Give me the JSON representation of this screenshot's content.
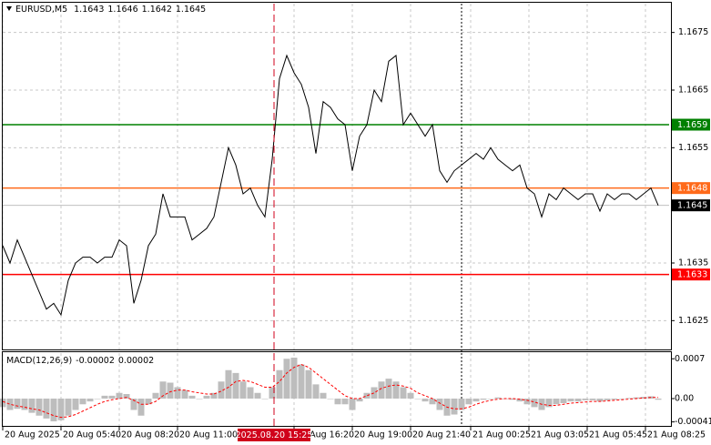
{
  "chart_data": {
    "type": "line",
    "title": "EURUSD,M5",
    "ohlc": [
      1.1643,
      1.1646,
      1.1642,
      1.1645
    ],
    "x": [
      "2025-08-20 03:00",
      "2025-08-20 03:20",
      "2025-08-20 03:40",
      "2025-08-20 04:00",
      "2025-08-20 04:20",
      "2025-08-20 04:40",
      "2025-08-20 05:00",
      "2025-08-20 05:20",
      "2025-08-20 05:40",
      "2025-08-20 06:00",
      "2025-08-20 06:20",
      "2025-08-20 06:40",
      "2025-08-20 07:00",
      "2025-08-20 07:20",
      "2025-08-20 07:40",
      "2025-08-20 08:00",
      "2025-08-20 08:20",
      "2025-08-20 08:40",
      "2025-08-20 09:00",
      "2025-08-20 09:20",
      "2025-08-20 09:40",
      "2025-08-20 10:00",
      "2025-08-20 10:20",
      "2025-08-20 10:40",
      "2025-08-20 11:00",
      "2025-08-20 11:20",
      "2025-08-20 11:40",
      "2025-08-20 12:00",
      "2025-08-20 12:20",
      "2025-08-20 12:40",
      "2025-08-20 13:00",
      "2025-08-20 13:20",
      "2025-08-20 13:40",
      "2025-08-20 14:00",
      "2025-08-20 14:20",
      "2025-08-20 14:40",
      "2025-08-20 15:00",
      "2025-08-20 15:20",
      "2025-08-20 15:40",
      "2025-08-20 16:00",
      "2025-08-20 16:20",
      "2025-08-20 16:40",
      "2025-08-20 17:00",
      "2025-08-20 17:20",
      "2025-08-20 17:40",
      "2025-08-20 18:00",
      "2025-08-20 18:20",
      "2025-08-20 18:40",
      "2025-08-20 19:00",
      "2025-08-20 19:20",
      "2025-08-20 19:40",
      "2025-08-20 20:00",
      "2025-08-20 20:20",
      "2025-08-20 20:40",
      "2025-08-20 21:00",
      "2025-08-20 21:20",
      "2025-08-20 21:40",
      "2025-08-20 22:00",
      "2025-08-20 22:20",
      "2025-08-20 22:40",
      "2025-08-20 23:00",
      "2025-08-20 23:20",
      "2025-08-20 23:40",
      "2025-08-21 00:00",
      "2025-08-21 00:20",
      "2025-08-21 00:40",
      "2025-08-21 01:00",
      "2025-08-21 01:20",
      "2025-08-21 01:40",
      "2025-08-21 02:00",
      "2025-08-21 02:20",
      "2025-08-21 02:40",
      "2025-08-21 03:00",
      "2025-08-21 03:20",
      "2025-08-21 03:40",
      "2025-08-21 04:00",
      "2025-08-21 04:20",
      "2025-08-21 04:40",
      "2025-08-21 05:00",
      "2025-08-21 05:20",
      "2025-08-21 05:40",
      "2025-08-21 06:00",
      "2025-08-21 06:20",
      "2025-08-21 06:40",
      "2025-08-21 07:00",
      "2025-08-21 07:20",
      "2025-08-21 07:40",
      "2025-08-21 08:00",
      "2025-08-21 08:20",
      "2025-08-21 08:40",
      "2025-08-21 09:00"
    ],
    "xlim": [
      "2025-08-20 03:00",
      "2025-08-21 09:30"
    ],
    "xticks": [
      {
        "value": "2025-08-20 03:00",
        "label": "20 Aug 2025"
      },
      {
        "value": "2025-08-20 05:40",
        "label": "20 Aug 05:40"
      },
      {
        "value": "2025-08-20 08:20",
        "label": "20 Aug 08:20"
      },
      {
        "value": "2025-08-20 11:00",
        "label": "20 Aug 11:00"
      },
      {
        "value": "2025-08-20 16:20",
        "label": "20 Aug 16:20"
      },
      {
        "value": "2025-08-20 19:00",
        "label": "20 Aug 19:00"
      },
      {
        "value": "2025-08-20 21:40",
        "label": "20 Aug 21:40"
      },
      {
        "value": "2025-08-21 00:25",
        "label": "21 Aug 00:25"
      },
      {
        "value": "2025-08-21 03:05",
        "label": "21 Aug 03:05"
      },
      {
        "value": "2025-08-21 05:45",
        "label": "21 Aug 05:45"
      },
      {
        "value": "2025-08-21 08:25",
        "label": "21 Aug 08:25"
      }
    ],
    "ylim": [
      1.162,
      1.168
    ],
    "yticks": [
      1.1625,
      1.1635,
      1.1655,
      1.1665,
      1.1675
    ],
    "grid": true,
    "series": [
      {
        "color": "#000000",
        "values": [
          1.1638,
          1.1635,
          1.1639,
          1.1636,
          1.1633,
          1.163,
          1.1627,
          1.1628,
          1.1626,
          1.1632,
          1.1635,
          1.1636,
          1.1636,
          1.1635,
          1.1636,
          1.1636,
          1.1639,
          1.1638,
          1.1628,
          1.1632,
          1.1638,
          1.164,
          1.1647,
          1.1643,
          1.1643,
          1.1643,
          1.1639,
          1.164,
          1.1641,
          1.1643,
          1.1649,
          1.1655,
          1.1652,
          1.1647,
          1.1648,
          1.1645,
          1.1643,
          1.1653,
          1.1667,
          1.1671,
          1.1668,
          1.1666,
          1.1662,
          1.1654,
          1.1663,
          1.1662,
          1.166,
          1.1659,
          1.1651,
          1.1657,
          1.1659,
          1.1665,
          1.1663,
          1.167,
          1.1671,
          1.1659,
          1.1661,
          1.1659,
          1.1657,
          1.1659,
          1.1651,
          1.1649,
          1.1651,
          1.1652,
          1.1653,
          1.1654,
          1.1653,
          1.1655,
          1.1653,
          1.1652,
          1.1651,
          1.1652,
          1.1648,
          1.1647,
          1.1643,
          1.1647,
          1.1646,
          1.1648,
          1.1647,
          1.1646,
          1.1647,
          1.1647,
          1.1644,
          1.1647,
          1.1646,
          1.1647,
          1.1647,
          1.1646,
          1.1647,
          1.1648,
          1.1645
        ]
      }
    ],
    "levels": [
      {
        "value": 1.1659,
        "color": "#008000",
        "box": "#008000"
      },
      {
        "value": 1.1648,
        "color": "#ff6a1a",
        "box": "#ff6a1a"
      },
      {
        "value": 1.1645,
        "color": "#c0c0c0",
        "box": "#000000"
      },
      {
        "value": 1.1633,
        "color": "#ff0000",
        "box": "#ff0000"
      }
    ],
    "crosshair": {
      "x": "2025-08-20 15:25",
      "label": "2025.08.20 15:25",
      "color": "#d0021b"
    },
    "day_separators": [
      "2025-08-21 00:00"
    ],
    "indicator": {
      "type": "macd",
      "name": "MACD(12,26,9)",
      "ylim": [
        -0.00048,
        0.0008
      ],
      "yticks": [
        -0.00041,
        {
          "value": 0,
          "label": "0.00"
        },
        0.0007
      ],
      "series": [
        {
          "type": "bar",
          "color": "#bdbdbd",
          "values": [
            -0.00015,
            -0.0002,
            -0.00018,
            -0.0002,
            -0.00025,
            -0.0003,
            -0.00035,
            -0.0004,
            -0.00038,
            -0.0003,
            -0.0002,
            -0.0001,
            -5e-05,
            0,
            5e-05,
            5e-05,
            0.0001,
            8e-05,
            -0.0002,
            -0.0003,
            -0.0001,
            0.0001,
            0.0003,
            0.00028,
            0.0002,
            0.00015,
            5e-05,
            0,
            5e-05,
            0.0001,
            0.0003,
            0.0005,
            0.00045,
            0.0003,
            0.0002,
            0.0001,
            0,
            0.0002,
            0.0005,
            0.0007,
            0.00072,
            0.0006,
            0.0005,
            0.00025,
            0.0001,
            0,
            -0.0001,
            -0.0001,
            -0.0002,
            -5e-05,
            0.0001,
            0.0002,
            0.0003,
            0.00035,
            0.0003,
            0.0002,
            0.0001,
            0,
            -5e-05,
            -0.0001,
            -0.0002,
            -0.0003,
            -0.00028,
            -0.0002,
            -0.0001,
            -5e-05,
            -2e-05,
            0,
            2e-05,
            0,
            -2e-05,
            -5e-05,
            -0.0001,
            -0.00015,
            -0.0002,
            -0.00015,
            -0.0001,
            -8e-05,
            -5e-05,
            -5e-05,
            -3e-05,
            -3e-05,
            -5e-05,
            -3e-05,
            -2e-05,
            0,
            1e-05,
            2e-05,
            3e-05,
            4e-05,
            -2e-05
          ]
        },
        {
          "type": "line",
          "color": "#ff0000",
          "values": [
            -5e-05,
            -0.0001,
            -0.00013,
            -0.00015,
            -0.00018,
            -0.0002,
            -0.00025,
            -0.0003,
            -0.00033,
            -0.00032,
            -0.00028,
            -0.00022,
            -0.00016,
            -0.0001,
            -5e-05,
            -2e-05,
            0,
            2e-05,
            -3e-05,
            -0.0001,
            -0.0001,
            -5e-05,
            5e-05,
            0.00012,
            0.00015,
            0.00015,
            0.00012,
            0.0001,
            8e-05,
            8e-05,
            0.00013,
            0.0002,
            0.0003,
            0.00032,
            0.0003,
            0.00025,
            0.0002,
            0.0002,
            0.0003,
            0.00045,
            0.00055,
            0.0006,
            0.00055,
            0.00045,
            0.00035,
            0.00025,
            0.00015,
            5e-05,
            0,
            0,
            5e-05,
            0.0001,
            0.00018,
            0.00022,
            0.00024,
            0.00022,
            0.00018,
            0.0001,
            5e-05,
            0,
            -8e-05,
            -0.00015,
            -0.00018,
            -0.00018,
            -0.00015,
            -0.0001,
            -6e-05,
            -3e-05,
            -1e-05,
            0,
            0,
            -1e-05,
            -3e-05,
            -6e-05,
            -0.0001,
            -0.00012,
            -0.00012,
            -0.0001,
            -8e-05,
            -7e-05,
            -6e-05,
            -5e-05,
            -5e-05,
            -4e-05,
            -3e-05,
            -2e-05,
            -1e-05,
            0,
            1e-05,
            2e-05,
            2e-05
          ]
        }
      ]
    }
  }
}
